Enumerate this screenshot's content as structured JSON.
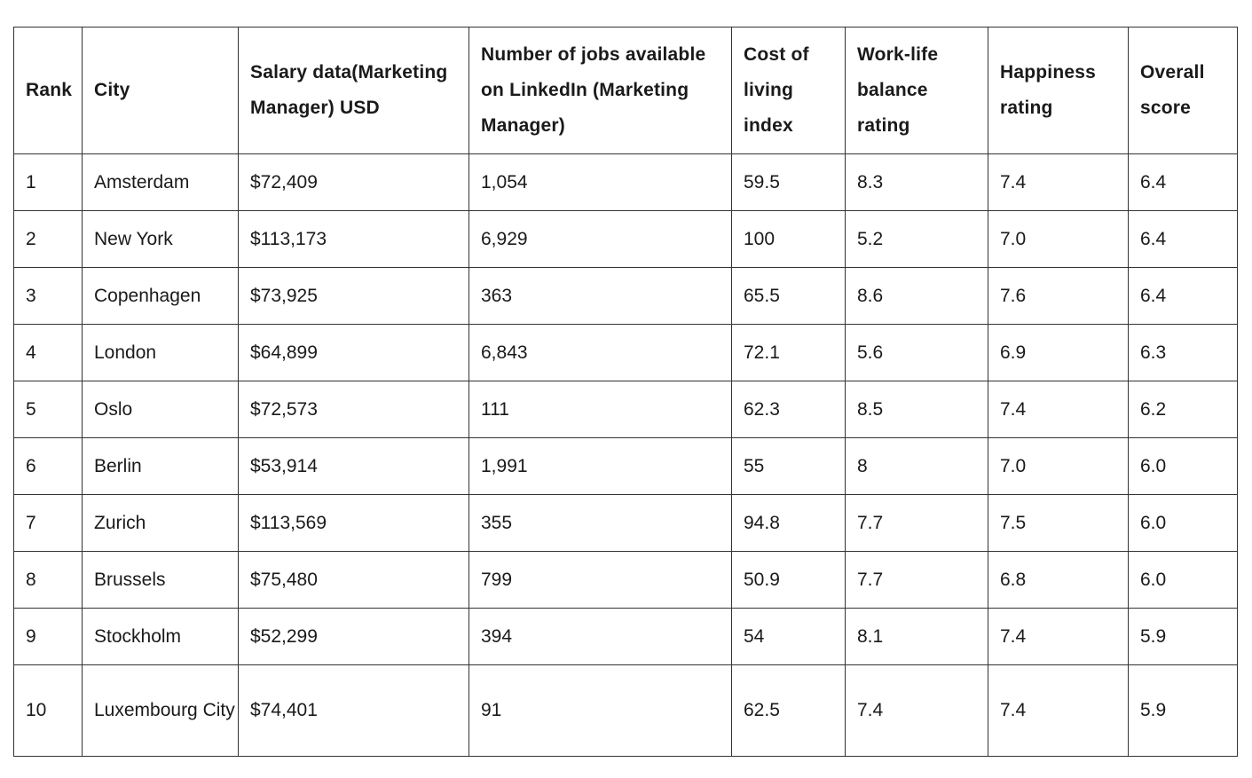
{
  "table": {
    "headers": [
      "Rank",
      "City",
      "Salary data(Marketing Manager) USD",
      "Number of jobs available on LinkedIn (Marketing Manager)",
      "Cost of living index",
      "Work-life balance rating",
      "Happiness rating",
      "Overall score"
    ],
    "rows": [
      [
        "1",
        "Amsterdam",
        "$72,409",
        "1,054",
        "59.5",
        "8.3",
        "7.4",
        "6.4"
      ],
      [
        "2",
        "New York",
        "$113,173",
        "6,929",
        "100",
        "5.2",
        "7.0",
        "6.4"
      ],
      [
        "3",
        "Copenhagen",
        "$73,925",
        "363",
        "65.5",
        "8.6",
        "7.6",
        "6.4"
      ],
      [
        "4",
        "London",
        "$64,899",
        "6,843",
        "72.1",
        "5.6",
        "6.9",
        "6.3"
      ],
      [
        "5",
        "Oslo",
        "$72,573",
        "111",
        "62.3",
        "8.5",
        "7.4",
        "6.2"
      ],
      [
        "6",
        "Berlin",
        "$53,914",
        "1,991",
        "55",
        "8",
        "7.0",
        "6.0"
      ],
      [
        "7",
        "Zurich",
        "$113,569",
        "355",
        "94.8",
        "7.7",
        "7.5",
        "6.0"
      ],
      [
        "8",
        "Brussels",
        "$75,480",
        "799",
        "50.9",
        "7.7",
        "6.8",
        "6.0"
      ],
      [
        "9",
        "Stockholm",
        "$52,299",
        "394",
        "54",
        "8.1",
        "7.4",
        "5.9"
      ],
      [
        "10",
        "Luxembourg City",
        "$74,401",
        "91",
        "62.5",
        "7.4",
        "7.4",
        "5.9"
      ]
    ]
  }
}
